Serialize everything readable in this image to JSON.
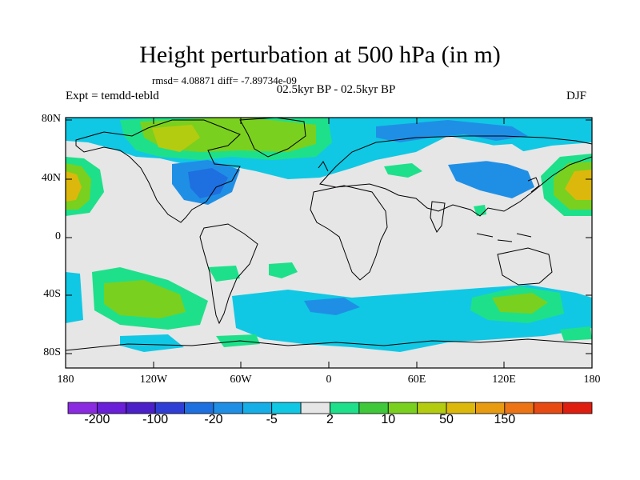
{
  "title": "Height perturbation at 500 hPa (in m)",
  "stats": "rmsd= 4.08871  diff= -7.89734e-09",
  "experiment": "Expt = temdd-tebld",
  "period": "02.5kyr BP - 02.5kyr BP",
  "season": "DJF",
  "lat_labels": [
    "80N",
    "40N",
    "0",
    "40S",
    "80S"
  ],
  "lon_labels": [
    "180",
    "120W",
    "60W",
    "0",
    "60E",
    "120E",
    "180"
  ],
  "colorbar": {
    "colors": [
      "#8a2be2",
      "#6a1fd8",
      "#4b20c8",
      "#2f3fd6",
      "#1e6fe0",
      "#1f8fe6",
      "#16aee6",
      "#10c8e4",
      "#e6e6e6",
      "#1ee08a",
      "#3ec83a",
      "#7ad01e",
      "#b4cc10",
      "#dcb80c",
      "#e89a10",
      "#ec7414",
      "#e84a14",
      "#e01e10"
    ],
    "labels": [
      "-200",
      "-100",
      "-20",
      "-5",
      "2",
      "10",
      "50",
      "150"
    ],
    "background_color": "#e6e6e6"
  }
}
